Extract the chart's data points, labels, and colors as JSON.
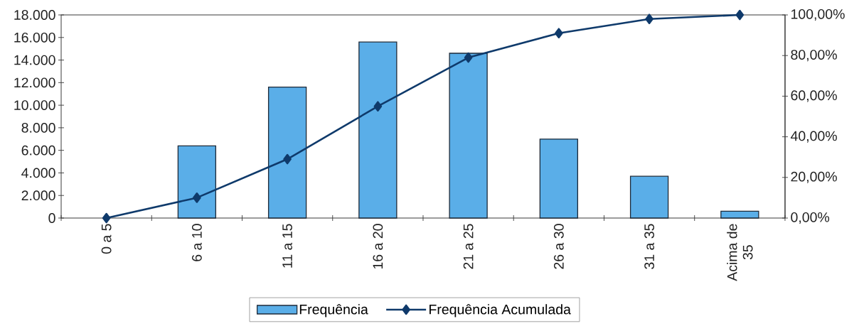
{
  "chart_data": {
    "type": "bar",
    "categories": [
      "0 a 5",
      "6 a 10",
      "11 a 15",
      "16 a 20",
      "21 a 25",
      "26 a 30",
      "31 a 35",
      "Acima de 35"
    ],
    "series": [
      {
        "name": "Frequência",
        "color": "#5aaee8",
        "values": [
          null,
          6400,
          11600,
          15600,
          14600,
          7000,
          3700,
          600
        ]
      },
      {
        "name": "Frequência Acumulada",
        "type": "line",
        "axis": "y2",
        "color": "#0f3a6b",
        "marker": "diamond",
        "line_style": "solid",
        "values": [
          0,
          10,
          29,
          55,
          79,
          91,
          98,
          100
        ]
      }
    ],
    "ylim": [
      0,
      18000
    ],
    "yticks": [
      {
        "value": 0,
        "label": "0"
      },
      {
        "value": 2000,
        "label": "2.000"
      },
      {
        "value": 4000,
        "label": "4.000"
      },
      {
        "value": 6000,
        "label": "6.000"
      },
      {
        "value": 8000,
        "label": "8.000"
      },
      {
        "value": 10000,
        "label": "10.000"
      },
      {
        "value": 12000,
        "label": "12.000"
      },
      {
        "value": 14000,
        "label": "14.000"
      },
      {
        "value": 16000,
        "label": "16.000"
      },
      {
        "value": 18000,
        "label": "18.000"
      }
    ],
    "y2lim": [
      0,
      100
    ],
    "y2ticks": [
      {
        "value": 0,
        "label": "0,00%"
      },
      {
        "value": 20,
        "label": "20,00%"
      },
      {
        "value": 40,
        "label": "40,00%"
      },
      {
        "value": 60,
        "label": "60,00%"
      },
      {
        "value": 80,
        "label": "80,00%"
      },
      {
        "value": 100,
        "label": "100,00%"
      }
    ],
    "legend": "bottom"
  }
}
